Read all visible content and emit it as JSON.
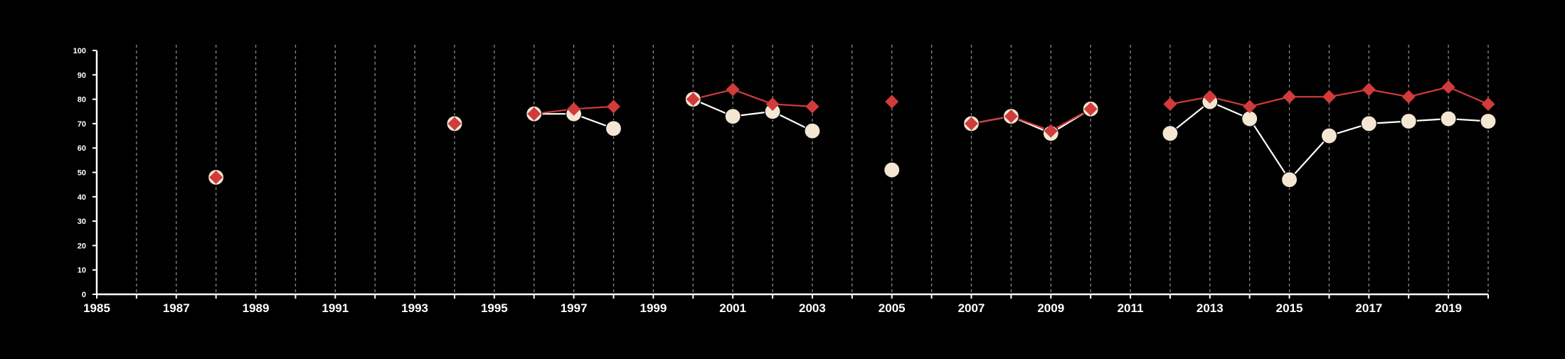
{
  "chart_data": {
    "type": "line",
    "title": "",
    "xlabel": "",
    "ylabel": "",
    "xlim": [
      1985,
      2020
    ],
    "ylim": [
      0,
      100
    ],
    "x_ticks": [
      "1985",
      "1987",
      "1989",
      "1991",
      "1993",
      "1995",
      "1997",
      "1999",
      "2001",
      "2003",
      "2005",
      "2007",
      "2009",
      "2011",
      "2013",
      "2015",
      "2017",
      "2019"
    ],
    "y_ticks": [
      "0",
      "10",
      "20",
      "30",
      "40",
      "50",
      "60",
      "70",
      "80",
      "90",
      "100"
    ],
    "grid": "vertical dashed lines at every year",
    "legend": "none",
    "series": [
      {
        "marker": "circle",
        "color": "#f3e7d3",
        "line_color": "#ffffff",
        "points": [
          [
            1988,
            48
          ],
          [
            1994,
            70
          ],
          [
            1996,
            74
          ],
          [
            1997,
            74
          ],
          [
            1998,
            68
          ],
          [
            2000,
            80
          ],
          [
            2001,
            73
          ],
          [
            2002,
            75
          ],
          [
            2003,
            67
          ],
          [
            2005,
            51
          ],
          [
            2007,
            70
          ],
          [
            2008,
            73
          ],
          [
            2009,
            66
          ],
          [
            2010,
            76
          ],
          [
            2012,
            66
          ],
          [
            2013,
            79
          ],
          [
            2014,
            72
          ],
          [
            2015,
            47
          ],
          [
            2016,
            65
          ],
          [
            2017,
            70
          ],
          [
            2018,
            71
          ],
          [
            2019,
            72
          ],
          [
            2020,
            71
          ]
        ]
      },
      {
        "marker": "diamond",
        "color": "#d13b3b",
        "line_color": "#d13b3b",
        "points": [
          [
            1988,
            48
          ],
          [
            1994,
            70
          ],
          [
            1996,
            74
          ],
          [
            1997,
            76
          ],
          [
            1998,
            77
          ],
          [
            2000,
            80
          ],
          [
            2001,
            84
          ],
          [
            2002,
            78
          ],
          [
            2003,
            77
          ],
          [
            2005,
            79
          ],
          [
            2007,
            70
          ],
          [
            2008,
            73
          ],
          [
            2009,
            67
          ],
          [
            2010,
            76
          ],
          [
            2012,
            78
          ],
          [
            2013,
            81
          ],
          [
            2014,
            77
          ],
          [
            2015,
            81
          ],
          [
            2016,
            81
          ],
          [
            2017,
            84
          ],
          [
            2018,
            81
          ],
          [
            2019,
            85
          ],
          [
            2020,
            78
          ]
        ]
      }
    ]
  }
}
